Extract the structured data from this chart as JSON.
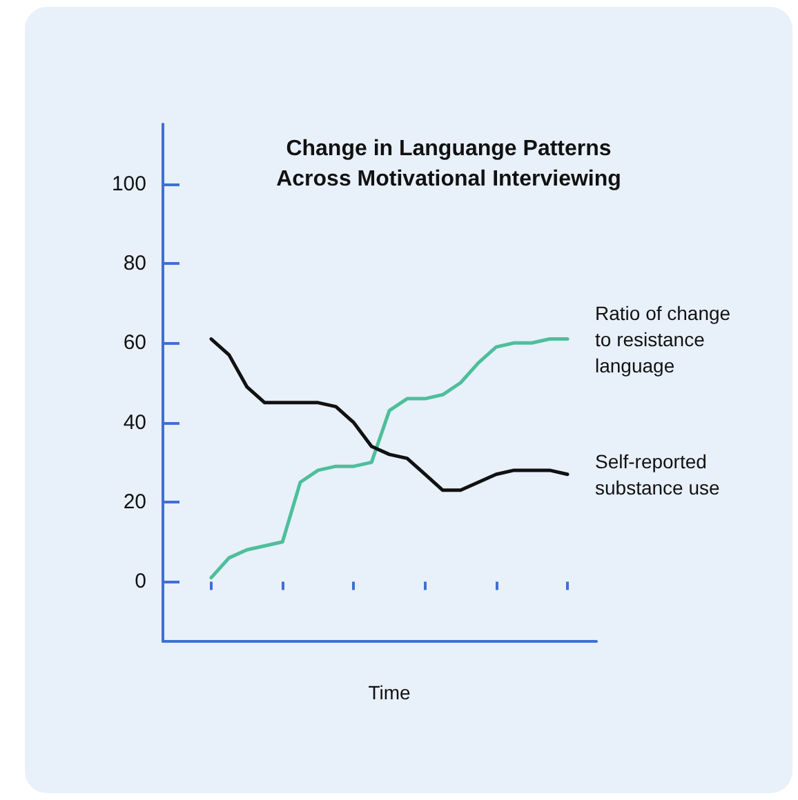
{
  "chart_data": {
    "type": "line",
    "title": "Change in Languange Patterns\nAcross Motivational Interviewing",
    "xlabel": "Time",
    "categories": [
      null,
      null,
      null,
      null,
      null,
      null,
      null,
      null,
      null,
      null,
      null,
      null,
      null,
      null,
      null,
      null,
      null,
      null,
      null,
      null,
      null
    ],
    "ylim": [
      -15,
      115
    ],
    "yticks": [
      0,
      20,
      40,
      60,
      80,
      100
    ],
    "grid": false,
    "legend": false,
    "marker": "none",
    "line_style": "solid",
    "series": [
      {
        "name": "Ratio of change to resistance language",
        "color": "#4dbf9a",
        "values": [
          1,
          6,
          8,
          9,
          10,
          25,
          28,
          29,
          29,
          30,
          43,
          46,
          46,
          47,
          50,
          55,
          59,
          60,
          60,
          61,
          61
        ]
      },
      {
        "name": "Self-reported substance use",
        "color": "#111111",
        "values": [
          61,
          57,
          49,
          45,
          45,
          45,
          45,
          44,
          40,
          34,
          32,
          31,
          27,
          23,
          23,
          25,
          27,
          28,
          28,
          28,
          27
        ]
      }
    ]
  }
}
